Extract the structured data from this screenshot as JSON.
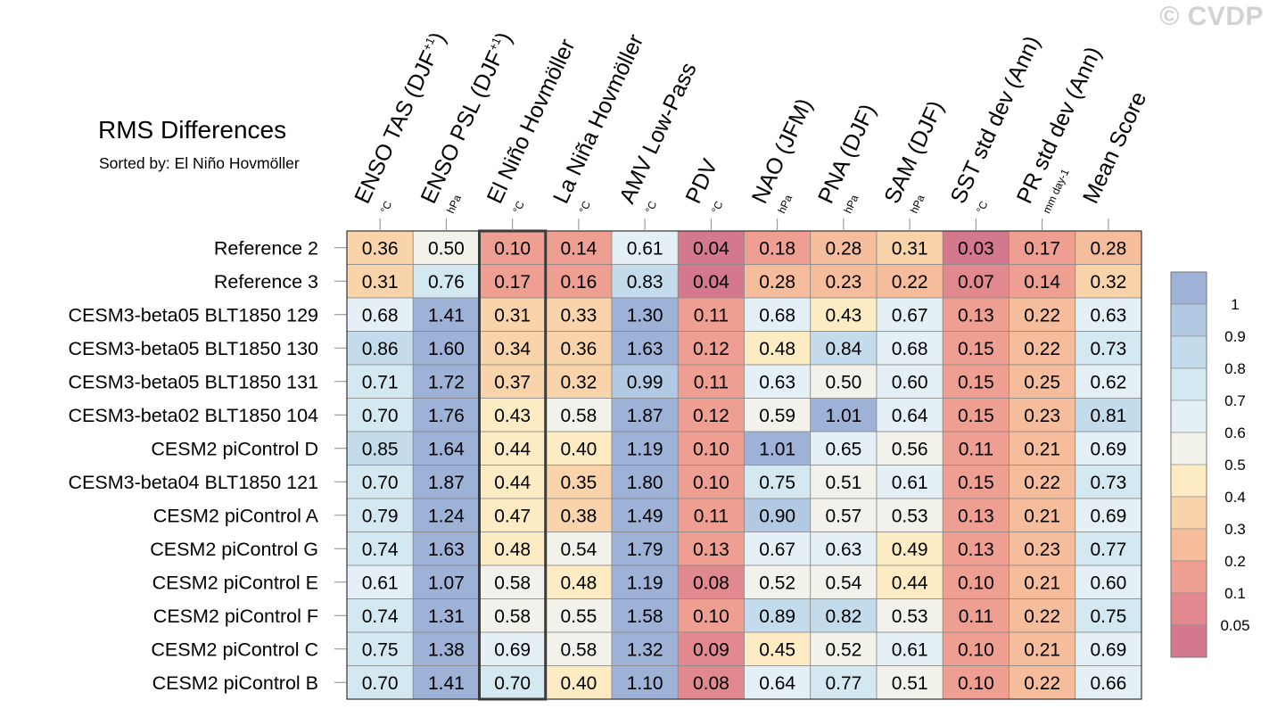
{
  "watermark": "© CVDP",
  "chart_data": {
    "type": "heatmap",
    "title": "RMS Differences",
    "subtitle": "Sorted by: El Niño Hovmöller",
    "highlight_column": 2,
    "columns": [
      {
        "name": "ENSO TAS (DJF+1)",
        "main": "ENSO TAS (DJF",
        "sup": "+1",
        "close": ")",
        "unit": "°C"
      },
      {
        "name": "ENSO PSL (DJF+1)",
        "main": "ENSO PSL (DJF",
        "sup": "+1",
        "close": ")",
        "unit": "hPa"
      },
      {
        "name": "El Niño Hovmöller",
        "main": "El Niño Hovmöller",
        "sup": "",
        "close": "",
        "unit": "°C"
      },
      {
        "name": "La Niña Hovmöller",
        "main": "La Niña Hovmöller",
        "sup": "",
        "close": "",
        "unit": "°C"
      },
      {
        "name": "AMV Low-Pass",
        "main": "AMV Low-Pass",
        "sup": "",
        "close": "",
        "unit": "°C"
      },
      {
        "name": "PDV",
        "main": "PDV",
        "sup": "",
        "close": "",
        "unit": "°C"
      },
      {
        "name": "NAO (JFM)",
        "main": "NAO (JFM)",
        "sup": "",
        "close": "",
        "unit": "hPa"
      },
      {
        "name": "PNA (DJF)",
        "main": "PNA (DJF)",
        "sup": "",
        "close": "",
        "unit": "hPa"
      },
      {
        "name": "SAM (DJF)",
        "main": "SAM (DJF)",
        "sup": "",
        "close": "",
        "unit": "hPa"
      },
      {
        "name": "SST std dev (Ann)",
        "main": "SST std dev (Ann)",
        "sup": "",
        "close": "",
        "unit": "°C"
      },
      {
        "name": "PR std dev (Ann)",
        "main": "PR std dev (Ann)",
        "sup": "",
        "close": "",
        "unit": "mm day-1"
      },
      {
        "name": "Mean Score",
        "main": "Mean Score",
        "sup": "",
        "close": "",
        "unit": ""
      }
    ],
    "rows": [
      {
        "name": "Reference 2",
        "values": [
          0.36,
          0.5,
          0.1,
          0.14,
          0.61,
          0.04,
          0.18,
          0.28,
          0.31,
          0.03,
          0.17,
          0.28
        ]
      },
      {
        "name": "Reference 3",
        "values": [
          0.31,
          0.76,
          0.17,
          0.16,
          0.83,
          0.04,
          0.28,
          0.23,
          0.22,
          0.07,
          0.14,
          0.32
        ]
      },
      {
        "name": "CESM3-beta05 BLT1850 129",
        "values": [
          0.68,
          1.41,
          0.31,
          0.33,
          1.3,
          0.11,
          0.68,
          0.43,
          0.67,
          0.13,
          0.22,
          0.63
        ]
      },
      {
        "name": "CESM3-beta05 BLT1850 130",
        "values": [
          0.86,
          1.6,
          0.34,
          0.36,
          1.63,
          0.12,
          0.48,
          0.84,
          0.68,
          0.15,
          0.22,
          0.73
        ]
      },
      {
        "name": "CESM3-beta05 BLT1850 131",
        "values": [
          0.71,
          1.72,
          0.37,
          0.32,
          0.99,
          0.11,
          0.63,
          0.5,
          0.6,
          0.15,
          0.25,
          0.62
        ]
      },
      {
        "name": "CESM3-beta02 BLT1850 104",
        "values": [
          0.7,
          1.76,
          0.43,
          0.58,
          1.87,
          0.12,
          0.59,
          1.01,
          0.64,
          0.15,
          0.23,
          0.81
        ]
      },
      {
        "name": "CESM2 piControl D",
        "values": [
          0.85,
          1.64,
          0.44,
          0.4,
          1.19,
          0.1,
          1.01,
          0.65,
          0.56,
          0.11,
          0.21,
          0.69
        ]
      },
      {
        "name": "CESM3-beta04 BLT1850 121",
        "values": [
          0.7,
          1.87,
          0.44,
          0.35,
          1.8,
          0.1,
          0.75,
          0.51,
          0.61,
          0.15,
          0.22,
          0.73
        ]
      },
      {
        "name": "CESM2 piControl A",
        "values": [
          0.79,
          1.24,
          0.47,
          0.38,
          1.49,
          0.11,
          0.9,
          0.57,
          0.53,
          0.13,
          0.21,
          0.69
        ]
      },
      {
        "name": "CESM2 piControl G",
        "values": [
          0.74,
          1.63,
          0.48,
          0.54,
          1.79,
          0.13,
          0.67,
          0.63,
          0.49,
          0.13,
          0.23,
          0.77
        ]
      },
      {
        "name": "CESM2 piControl E",
        "values": [
          0.61,
          1.07,
          0.58,
          0.48,
          1.19,
          0.08,
          0.52,
          0.54,
          0.44,
          0.1,
          0.21,
          0.6
        ]
      },
      {
        "name": "CESM2 piControl F",
        "values": [
          0.74,
          1.31,
          0.58,
          0.55,
          1.58,
          0.1,
          0.89,
          0.82,
          0.53,
          0.11,
          0.22,
          0.75
        ]
      },
      {
        "name": "CESM2 piControl C",
        "values": [
          0.75,
          1.38,
          0.69,
          0.58,
          1.32,
          0.09,
          0.45,
          0.52,
          0.61,
          0.1,
          0.21,
          0.69
        ]
      },
      {
        "name": "CESM2 piControl B",
        "values": [
          0.7,
          1.41,
          0.7,
          0.4,
          1.1,
          0.08,
          0.64,
          0.77,
          0.51,
          0.1,
          0.22,
          0.66
        ]
      }
    ],
    "colorbar": {
      "levels": [
        0.05,
        0.1,
        0.2,
        0.3,
        0.4,
        0.5,
        0.6,
        0.7,
        0.8,
        0.9,
        1
      ],
      "labels": [
        "0.05",
        "0.1",
        "0.2",
        "0.3",
        "0.4",
        "0.5",
        "0.6",
        "0.7",
        "0.8",
        "0.9",
        "1"
      ],
      "colors": [
        "#d4788d",
        "#e1898e",
        "#ee9f92",
        "#f6bd9c",
        "#f9d4aa",
        "#fcebc3",
        "#f2f2ea",
        "#e4f0f5",
        "#d4e8f1",
        "#c3dbea",
        "#b1c9e2",
        "#9eb1d7"
      ]
    }
  }
}
